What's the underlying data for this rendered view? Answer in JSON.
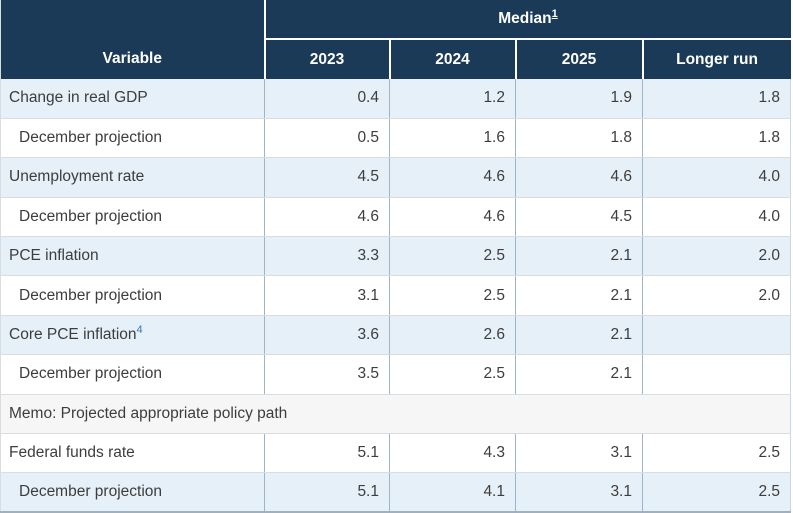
{
  "table": {
    "header": {
      "variable_label": "Variable",
      "median_label": "Median",
      "median_footnote": "1",
      "year_columns": [
        "2023",
        "2024",
        "2025",
        "Longer run"
      ]
    },
    "rows": [
      {
        "label": "Change in real GDP",
        "indent": false,
        "shade": "blue",
        "values": [
          "0.4",
          "1.2",
          "1.9",
          "1.8"
        ]
      },
      {
        "label": "December projection",
        "indent": true,
        "shade": "white",
        "values": [
          "0.5",
          "1.6",
          "1.8",
          "1.8"
        ]
      },
      {
        "label": "Unemployment rate",
        "indent": false,
        "shade": "blue",
        "values": [
          "4.5",
          "4.6",
          "4.6",
          "4.0"
        ]
      },
      {
        "label": "December projection",
        "indent": true,
        "shade": "white",
        "values": [
          "4.6",
          "4.6",
          "4.5",
          "4.0"
        ]
      },
      {
        "label": "PCE inflation",
        "indent": false,
        "shade": "blue",
        "values": [
          "3.3",
          "2.5",
          "2.1",
          "2.0"
        ]
      },
      {
        "label": "December projection",
        "indent": true,
        "shade": "white",
        "values": [
          "3.1",
          "2.5",
          "2.1",
          "2.0"
        ]
      },
      {
        "label": "Core PCE inflation",
        "footnote": "4",
        "indent": false,
        "shade": "blue",
        "values": [
          "3.6",
          "2.6",
          "2.1",
          ""
        ]
      },
      {
        "label": "December projection",
        "indent": true,
        "shade": "white",
        "values": [
          "3.5",
          "2.5",
          "2.1",
          ""
        ]
      },
      {
        "type": "memo",
        "label": "Memo: Projected appropriate policy path",
        "shade": "memo"
      },
      {
        "label": "Federal funds rate",
        "indent": false,
        "shade": "white",
        "values": [
          "5.1",
          "4.3",
          "3.1",
          "2.5"
        ]
      },
      {
        "label": "December projection",
        "indent": true,
        "shade": "blue",
        "values": [
          "5.1",
          "4.1",
          "3.1",
          "2.5"
        ]
      }
    ],
    "colors": {
      "header_bg": "#1a3a57",
      "header_text": "#ffffff",
      "row_blue": "#e6f0f8",
      "row_white": "#ffffff",
      "memo_bg": "#f6f6f6",
      "body_text": "#3d3d3d",
      "footnote_link": "#3679b5",
      "column_border": "#9fb4c6",
      "row_border": "#dcdcdc"
    }
  },
  "chart_data": {
    "type": "table",
    "title": "Median",
    "title_footnote": "1",
    "columns": [
      "Variable",
      "2023",
      "2024",
      "2025",
      "Longer run"
    ],
    "rows": [
      {
        "variable": "Change in real GDP",
        "2023": 0.4,
        "2024": 1.2,
        "2025": 1.9,
        "longer_run": 1.8
      },
      {
        "variable": "December projection",
        "2023": 0.5,
        "2024": 1.6,
        "2025": 1.8,
        "longer_run": 1.8
      },
      {
        "variable": "Unemployment rate",
        "2023": 4.5,
        "2024": 4.6,
        "2025": 4.6,
        "longer_run": 4.0
      },
      {
        "variable": "December projection",
        "2023": 4.6,
        "2024": 4.6,
        "2025": 4.5,
        "longer_run": 4.0
      },
      {
        "variable": "PCE inflation",
        "2023": 3.3,
        "2024": 2.5,
        "2025": 2.1,
        "longer_run": 2.0
      },
      {
        "variable": "December projection",
        "2023": 3.1,
        "2024": 2.5,
        "2025": 2.1,
        "longer_run": 2.0
      },
      {
        "variable": "Core PCE inflation (footnote 4)",
        "2023": 3.6,
        "2024": 2.6,
        "2025": 2.1,
        "longer_run": null
      },
      {
        "variable": "December projection",
        "2023": 3.5,
        "2024": 2.5,
        "2025": 2.1,
        "longer_run": null
      },
      {
        "variable": "Memo: Projected appropriate policy path",
        "2023": null,
        "2024": null,
        "2025": null,
        "longer_run": null
      },
      {
        "variable": "Federal funds rate",
        "2023": 5.1,
        "2024": 4.3,
        "2025": 3.1,
        "longer_run": 2.5
      },
      {
        "variable": "December projection",
        "2023": 5.1,
        "2024": 4.1,
        "2025": 3.1,
        "longer_run": 2.5
      }
    ]
  }
}
